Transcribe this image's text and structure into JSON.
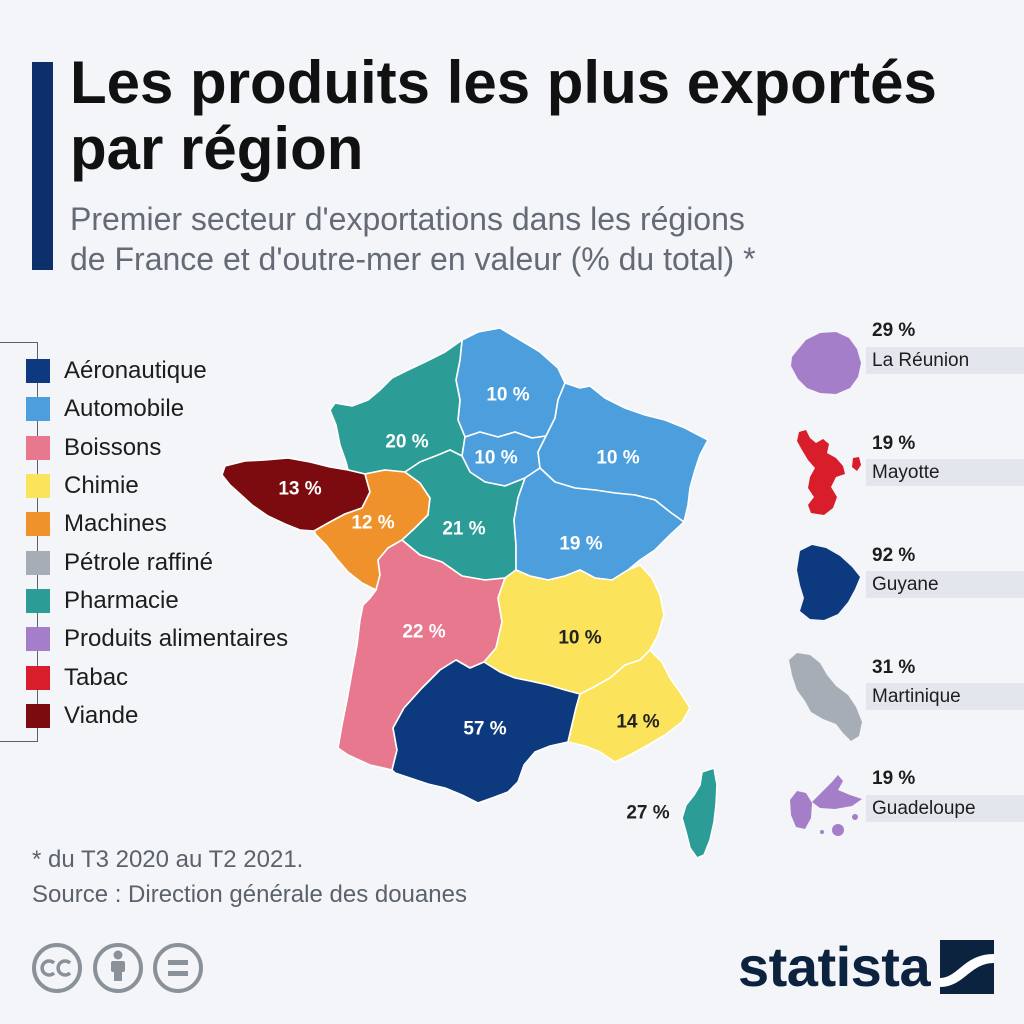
{
  "colors": {
    "background": "#f3f5f8",
    "accent": "#0d2f6c",
    "brand": "#0c2340",
    "muted": "#646b76",
    "icon_gray": "#8b9199"
  },
  "header": {
    "title_lines": [
      "Les produits les plus exportés",
      "par région"
    ],
    "subtitle_lines": [
      "Premier secteur d'exportations dans les régions",
      "de France et d'outre-mer en valeur (% du total) *"
    ]
  },
  "legend": {
    "items": [
      {
        "label": "Aéronautique",
        "color": "#0d3a7e"
      },
      {
        "label": "Automobile",
        "color": "#4c9fdc"
      },
      {
        "label": "Boissons",
        "color": "#e8788e"
      },
      {
        "label": "Chimie",
        "color": "#fbe35c"
      },
      {
        "label": "Machines",
        "color": "#f0922c"
      },
      {
        "label": "Pétrole raffiné",
        "color": "#a6adb6"
      },
      {
        "label": "Pharmacie",
        "color": "#2b9d96"
      },
      {
        "label": "Produits alimentaires",
        "color": "#a57ec9"
      },
      {
        "label": "Tabac",
        "color": "#d81e2b"
      },
      {
        "label": "Viande",
        "color": "#7c0b0f"
      }
    ]
  },
  "map": {
    "regions": [
      {
        "value": "10 %",
        "sector": 1
      },
      {
        "value": "20 %",
        "sector": 6
      },
      {
        "value": "10 %",
        "sector": 1
      },
      {
        "value": "10 %",
        "sector": 1
      },
      {
        "value": "13 %",
        "sector": 9
      },
      {
        "value": "12 %",
        "sector": 4
      },
      {
        "value": "21 %",
        "sector": 6
      },
      {
        "value": "19 %",
        "sector": 1
      },
      {
        "value": "22 %",
        "sector": 2
      },
      {
        "value": "10 %",
        "sector": 3
      },
      {
        "value": "57 %",
        "sector": 0
      },
      {
        "value": "14 %",
        "sector": 3
      },
      {
        "value": "27 %",
        "sector": 6
      }
    ]
  },
  "overseas": [
    {
      "name": "La Réunion",
      "value": "29 %",
      "sector": 7
    },
    {
      "name": "Mayotte",
      "value": "19 %",
      "sector": 8
    },
    {
      "name": "Guyane",
      "value": "92 %",
      "sector": 0
    },
    {
      "name": "Martinique",
      "value": "31 %",
      "sector": 5
    },
    {
      "name": "Guadeloupe",
      "value": "19 %",
      "sector": 7
    }
  ],
  "footer": {
    "note": "* du T3 2020 au T2 2021.",
    "source": "Source : Direction générale des douanes"
  },
  "license_icons": [
    "cc-icon",
    "attribution-icon",
    "no-derivatives-icon"
  ],
  "brand": {
    "name": "statista",
    "icon": "statista-logo-icon"
  }
}
